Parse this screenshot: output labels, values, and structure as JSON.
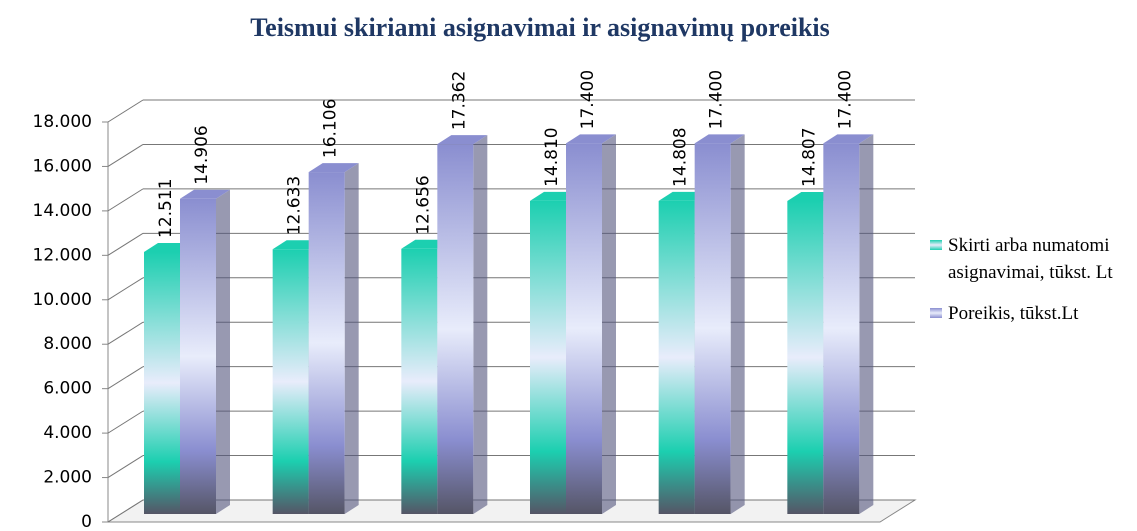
{
  "chart_data": {
    "type": "bar3d",
    "title": "Teismui skiriami asignavimai ir asignavimų poreikis",
    "categories": [
      null,
      null,
      null,
      null,
      null,
      null
    ],
    "series": [
      {
        "name": "Skirti arba numatomi asignavimai, tūkst. Lt",
        "color": "#1ccfb0",
        "values": [
          12511,
          12633,
          12656,
          14810,
          14808,
          14807
        ],
        "value_labels": [
          "12.511",
          "12.633",
          "12.656",
          "14.810",
          "14.808",
          "14.807"
        ]
      },
      {
        "name": "Poreikis, tūkst.Lt",
        "color": "#8a8ed0",
        "values": [
          14906,
          16106,
          17362,
          17400,
          17400,
          17400
        ],
        "value_labels": [
          "14.906",
          "16.106",
          "17.362",
          "17.400",
          "17.400",
          "17.400"
        ]
      }
    ],
    "ylim": [
      0,
      18000
    ],
    "yticks": [
      0,
      {
        "value": 2000,
        "label": "2.000"
      },
      {
        "value": 4000,
        "label": "4.000"
      },
      {
        "value": 6000,
        "label": "6.000"
      },
      {
        "value": 8000,
        "label": "8.000"
      },
      {
        "value": 10000,
        "label": "10.000"
      },
      {
        "value": 12000,
        "label": "12.000"
      },
      {
        "value": 14000,
        "label": "14.000"
      },
      {
        "value": 16000,
        "label": "16.000"
      },
      {
        "value": 18000,
        "label": "18.000"
      }
    ],
    "grid": true,
    "legend": "right"
  }
}
